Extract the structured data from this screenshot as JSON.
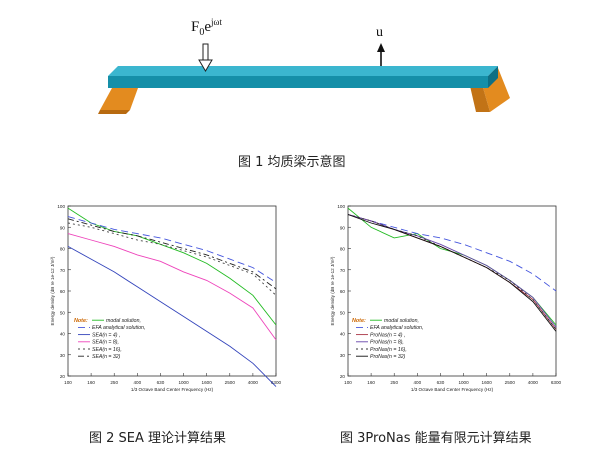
{
  "figure1": {
    "force_label_base": "F",
    "force_label_sub": "0",
    "force_label_exp": "e",
    "force_label_sup": "jωt",
    "displacement_label": "u",
    "caption": "图 1 均质梁示意图",
    "colors": {
      "beam_top": "#3bb6cf",
      "beam_front": "#158fa8",
      "support": "#e38b1f"
    }
  },
  "figure2": {
    "caption": "图 2 SEA 理论计算结果",
    "xlabel": "1/3 Octave Band Center Frequency (Hz)",
    "ylabel": "Energy density (dB re 1e-12 J/m³)",
    "note_label": "Note:",
    "legend": [
      "modal solution,",
      "EFA analytical solution,",
      "SEA(n = 4) ,",
      "SEA(n = 8),",
      "SEA(n = 16),",
      "SEA(n = 32)"
    ]
  },
  "figure3": {
    "caption": "图 3ProNas 能量有限元计算结果",
    "xlabel": "1/3 Octave Band Center Frequency (Hz)",
    "ylabel": "Energy density (dB re 1e-12 J/m³)",
    "note_label": "Note:",
    "legend": [
      "modal solution,",
      "EFA analytical solution,",
      "ProNas(n = 4) ,",
      "ProNas(n = 8),",
      "ProNas(n = 16),",
      "ProNas(n = 32)"
    ]
  },
  "chart_data": [
    {
      "type": "line",
      "categories": [
        "100",
        "160",
        "250",
        "400",
        "630",
        "1000",
        "1600",
        "2500",
        "4000",
        "6300"
      ],
      "xlabel": "1/3 Octave Band Center Frequency (Hz)",
      "ylabel": "Energy density (dB re 1e-12 J/m³)",
      "ylim": [
        20,
        100
      ],
      "yticks": [
        20,
        30,
        40,
        50,
        60,
        70,
        80,
        90,
        100
      ],
      "grid": false,
      "series": [
        {
          "name": "modal solution",
          "color": "#22bb22",
          "dash": "",
          "values": [
            99,
            92,
            88,
            86,
            82,
            78,
            73,
            66,
            58,
            44
          ]
        },
        {
          "name": "EFA analytical solution",
          "color": "#4455dd",
          "dash": "7 4",
          "values": [
            95,
            92,
            89,
            87,
            85,
            82,
            79,
            75,
            71,
            64
          ]
        },
        {
          "name": "SEA(n = 4)",
          "color": "#3344bb",
          "dash": "",
          "values": [
            81,
            75,
            69,
            62,
            55,
            48,
            41,
            34,
            26,
            15
          ]
        },
        {
          "name": "SEA(n = 8)",
          "color": "#ee44bb",
          "dash": "",
          "values": [
            87,
            84,
            81,
            77,
            74,
            69,
            65,
            59,
            52,
            37
          ]
        },
        {
          "name": "SEA(n = 16)",
          "color": "#444444",
          "dash": "2 3",
          "values": [
            92,
            90,
            87,
            84,
            82,
            79,
            76,
            72,
            68,
            58
          ]
        },
        {
          "name": "SEA(n = 32)",
          "color": "#222222",
          "dash": "6 3 2 3",
          "values": [
            94,
            91,
            88,
            86,
            83,
            80,
            77,
            73,
            69,
            61
          ]
        }
      ]
    },
    {
      "type": "line",
      "categories": [
        "100",
        "160",
        "250",
        "400",
        "630",
        "1000",
        "1600",
        "2500",
        "4000",
        "6300"
      ],
      "xlabel": "1/3 Octave Band Center Frequency (Hz)",
      "ylabel": "Energy density (dB re 1e-12 J/m³)",
      "ylim": [
        20,
        100
      ],
      "yticks": [
        20,
        30,
        40,
        50,
        60,
        70,
        80,
        90,
        100
      ],
      "grid": false,
      "series": [
        {
          "name": "modal solution",
          "color": "#22bb22",
          "dash": "",
          "values": [
            99,
            90,
            85,
            87,
            80,
            77,
            72,
            65,
            57,
            44
          ]
        },
        {
          "name": "EFA analytical solution",
          "color": "#4455dd",
          "dash": "7 4",
          "values": [
            96,
            93,
            90,
            87,
            85,
            82,
            78,
            74,
            68,
            60
          ]
        },
        {
          "name": "ProNas(n = 4)",
          "color": "#aa3344",
          "dash": "",
          "values": [
            96,
            93,
            89,
            85,
            81,
            76,
            71,
            64,
            56,
            42
          ]
        },
        {
          "name": "ProNas(n = 8)",
          "color": "#6644aa",
          "dash": "",
          "values": [
            96,
            93,
            89,
            86,
            82,
            77,
            72,
            65,
            57,
            43
          ]
        },
        {
          "name": "ProNas(n = 16)",
          "color": "#333333",
          "dash": "2 3",
          "values": [
            96,
            93,
            89,
            86,
            81,
            76,
            71,
            65,
            56,
            42
          ]
        },
        {
          "name": "ProNas(n = 32)",
          "color": "#111111",
          "dash": "",
          "values": [
            96,
            92,
            89,
            85,
            81,
            76,
            71,
            64,
            55,
            41
          ]
        }
      ]
    }
  ]
}
